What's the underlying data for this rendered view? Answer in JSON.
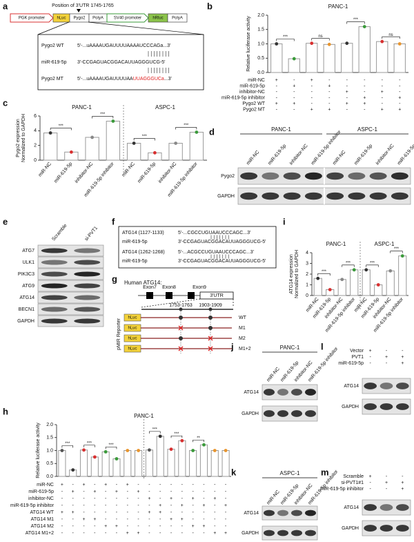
{
  "panel_letters": [
    "a",
    "b",
    "c",
    "d",
    "e",
    "f",
    "g",
    "h",
    "i",
    "j",
    "k",
    "l",
    "m"
  ],
  "construct": {
    "position_label": "Position of 3'UTR 1745-1765",
    "elements": [
      "PGK promoter",
      "hLuc",
      "Pygo2",
      "PolyA",
      "SV40 promoter",
      "hRluc",
      "PolyA"
    ],
    "alignment": [
      {
        "name": "Pygo2 WT",
        "sequence": "5'-...uAAAAUGAUUUUAAAAUCCCAGa...3'"
      },
      {
        "name": "miR-619-5p",
        "sequence": "3'-CCGAGUACGGACAUUAGGGUCG-5'"
      },
      {
        "name": "Pygo2 MT",
        "sequence": "5'-...uAAAAUGAUUUUAA",
        "mutation": "UUAGGGUCa",
        "sequence_end": "...3'"
      }
    ]
  },
  "chart_data": [
    {
      "type": "bar",
      "title": "PANC-1",
      "y_label": [
        "Relative luciferase activity"
      ],
      "ylim": [
        0,
        2
      ],
      "yticks": [
        {
          "value": 0,
          "label": "0.0"
        },
        0.5,
        {
          "value": 1,
          "label": "1.0"
        },
        1.5,
        {
          "value": 2,
          "label": "2.0"
        }
      ],
      "values": [
        1.0,
        0.48,
        1.02,
        0.98,
        1.02,
        1.6,
        1.08,
        1.0
      ],
      "colors": [
        "#333",
        "#3a9a3a",
        "#d83030",
        "#e8952e",
        "#333",
        "#3a9a3a",
        "#d83030",
        "#e8952e"
      ],
      "annotations": [
        "***",
        "ns",
        "***",
        "ns"
      ],
      "conditions": [
        {
          "name": "miR-NC",
          "signs": [
            "+",
            "-",
            "+",
            "-",
            "-",
            "-",
            "-",
            "-"
          ]
        },
        {
          "name": "miR-619-5p",
          "signs": [
            "-",
            "+",
            "-",
            "+",
            "-",
            "-",
            "-",
            "-"
          ]
        },
        {
          "name": "inhibitor-NC",
          "signs": [
            "-",
            "-",
            "-",
            "-",
            "+",
            "-",
            "+",
            "-"
          ]
        },
        {
          "name": "miR-619-5p inhibitor",
          "signs": [
            "-",
            "-",
            "-",
            "-",
            "-",
            "+",
            "-",
            "+"
          ]
        },
        {
          "name": "Pygo2 WT",
          "signs": [
            "+",
            "+",
            "-",
            "-",
            "+",
            "+",
            "-",
            "-"
          ]
        },
        {
          "name": "Pygo2 MT",
          "signs": [
            "-",
            "-",
            "+",
            "+",
            "-",
            "-",
            "+",
            "+"
          ]
        }
      ]
    },
    {
      "type": "bar",
      "group_titles": [
        "PANC-1",
        "ASPC-1"
      ],
      "y_label": [
        "Pygo2 expression",
        "Normalized to GAPDH"
      ],
      "ylim": [
        0,
        6
      ],
      "yticks": [
        0,
        2,
        4,
        6
      ],
      "categories": [
        "miR-NC",
        "miR-619-5p",
        "inhibitor-NC",
        "miR-619-5p inhibitor",
        "miR-NC",
        "miR-619-5p",
        "inhibitor-NC",
        "miR-619-5p inhibitor"
      ],
      "values": [
        3.7,
        1.1,
        3.1,
        5.3,
        2.3,
        1.0,
        2.3,
        3.8
      ],
      "colors": [
        "#333",
        "#d83030",
        "#888",
        "#3a9a3a",
        "#333",
        "#d83030",
        "#888",
        "#3a9a3a"
      ],
      "annotations": [
        "***",
        "***",
        "***",
        "***"
      ]
    },
    {
      "type": "bar",
      "group_titles": [
        "PANC-1",
        "ASPC-1"
      ],
      "y_label": [
        "ATG14 expression",
        "Normalized to GAPDH"
      ],
      "ylim": [
        0,
        4
      ],
      "yticks": [
        0,
        1,
        2,
        3,
        4
      ],
      "categories": [
        "miR-NC",
        "miR-619-5p",
        "inhibitor-NC",
        "miR-619-5p inhibitor",
        "miR-NC",
        "miR-619-5p",
        "inhibitor-NC",
        "miR-619-5p inhibitor"
      ],
      "values": [
        1.6,
        0.55,
        1.5,
        2.4,
        2.4,
        1.0,
        2.3,
        3.7
      ],
      "colors": [
        "#333",
        "#d83030",
        "#888",
        "#3a9a3a",
        "#333",
        "#d83030",
        "#888",
        "#3a9a3a"
      ],
      "annotations": [
        "***",
        "***",
        "***",
        "***"
      ]
    },
    {
      "type": "bar",
      "title": "PANC-1",
      "y_label": [
        "Relative luciferase activity"
      ],
      "ylim": [
        0,
        2
      ],
      "yticks": [
        {
          "value": 0,
          "label": "0.0"
        },
        0.5,
        {
          "value": 1,
          "label": "1.0"
        },
        1.5,
        {
          "value": 2,
          "label": "2.0"
        }
      ],
      "values": [
        1.0,
        0.25,
        1.02,
        0.75,
        0.95,
        0.68,
        1.0,
        1.0,
        1.02,
        1.55,
        1.05,
        1.38,
        1.0,
        1.22,
        1.0,
        1.0
      ],
      "colors": [
        "#555",
        "#333",
        "#d83030",
        "#d83030",
        "#3a9a3a",
        "#3a9a3a",
        "#e8952e",
        "#e8952e",
        "#555",
        "#333",
        "#d83030",
        "#d83030",
        "#3a9a3a",
        "#3a9a3a",
        "#e8952e",
        "#e8952e"
      ],
      "annotations": [
        "***",
        "***",
        "***",
        null,
        "***",
        "***",
        "**",
        null
      ],
      "conditions": [
        {
          "name": "miR-NC",
          "signs": [
            "+",
            "-",
            "+",
            "-",
            "+",
            "-",
            "+",
            "-",
            "-",
            "-",
            "-",
            "-",
            "-",
            "-",
            "-",
            "-"
          ]
        },
        {
          "name": "miR-619-5p",
          "signs": [
            "-",
            "+",
            "-",
            "+",
            "-",
            "+",
            "-",
            "+",
            "-",
            "-",
            "-",
            "-",
            "-",
            "-",
            "-",
            "-"
          ]
        },
        {
          "name": "inhibitor-NC",
          "signs": [
            "-",
            "-",
            "-",
            "-",
            "-",
            "-",
            "-",
            "-",
            "+",
            "-",
            "+",
            "-",
            "+",
            "-",
            "+",
            "-"
          ]
        },
        {
          "name": "miR-619-5p inhibitor",
          "signs": [
            "-",
            "-",
            "-",
            "-",
            "-",
            "-",
            "-",
            "-",
            "-",
            "+",
            "-",
            "+",
            "-",
            "+",
            "-",
            "+"
          ]
        },
        {
          "name": "ATG14 WT",
          "signs": [
            "+",
            "+",
            "-",
            "-",
            "-",
            "-",
            "-",
            "-",
            "+",
            "+",
            "-",
            "-",
            "-",
            "-",
            "-",
            "-"
          ]
        },
        {
          "name": "ATG14 M1",
          "signs": [
            "-",
            "-",
            "+",
            "+",
            "-",
            "-",
            "-",
            "-",
            "-",
            "-",
            "+",
            "+",
            "-",
            "-",
            "-",
            "-"
          ]
        },
        {
          "name": "ATG14 M2",
          "signs": [
            "-",
            "-",
            "-",
            "-",
            "+",
            "+",
            "-",
            "-",
            "-",
            "-",
            "-",
            "-",
            "+",
            "+",
            "-",
            "-"
          ]
        },
        {
          "name": "ATG14 M1+2",
          "signs": [
            "-",
            "-",
            "-",
            "-",
            "-",
            "-",
            "+",
            "+",
            "-",
            "-",
            "-",
            "-",
            "-",
            "-",
            "+",
            "+"
          ]
        }
      ]
    }
  ],
  "blots": [
    {
      "group_titles": [
        "PANC-1",
        "ASPC-1"
      ],
      "lanes": [
        "miR-NC",
        "miR-619-5p",
        "inhibitor-NC",
        "miR-619-5p inhibitor",
        "miR-NC",
        "miR-619-5p",
        "inhibitor-NC",
        "miR-619-5p inhibitor"
      ],
      "proteins": [
        "Pygo2",
        "GAPDH"
      ]
    },
    {
      "lanes": [
        "Scramble",
        "si-PVT1"
      ],
      "proteins": [
        "ATG7",
        "ULK1",
        "PIK3C3",
        "ATG9",
        "ATG14",
        "BECN1",
        "GAPDH"
      ]
    },
    {
      "title": "PANC-1",
      "lanes": [
        "miR-NC",
        "miR-619-5p",
        "inhibitor-NC",
        "miR-619-5p inhibitor"
      ],
      "proteins": [
        "ATG14",
        "GAPDH"
      ]
    },
    {
      "title": "ASPC-1",
      "lanes": [
        "miR-NC",
        "miR-619-5p",
        "inhibitor-NC",
        "miR-619-5p inhibitor"
      ],
      "proteins": [
        "ATG14",
        "GAPDH"
      ]
    },
    {
      "conditions": [
        {
          "name": "Vector",
          "signs": [
            "+",
            "-",
            "-"
          ]
        },
        {
          "name": "PVT1",
          "signs": [
            "-",
            "+",
            "+"
          ]
        },
        {
          "name": "miR-619-5p",
          "signs": [
            "-",
            "-",
            "+"
          ]
        }
      ],
      "proteins": [
        "ATG14",
        "GAPDH"
      ]
    },
    {
      "conditions": [
        {
          "name": "Scramble",
          "signs": [
            "+",
            "-",
            "-"
          ]
        },
        {
          "name": "si-PVT1#1",
          "signs": [
            "-",
            "+",
            "+"
          ]
        },
        {
          "name": "miR-619-5p inhibitor",
          "signs": [
            "-",
            "-",
            "+"
          ]
        }
      ],
      "proteins": [
        "ATG14",
        "GAPDH"
      ]
    }
  ],
  "atg14_sites": {
    "rows": [
      {
        "name": "ATG14 (1127-1133)",
        "sequence": "5'-...CGCCUGUAAUCCCAGC...3'"
      },
      {
        "name": "miR-619-5p",
        "sequence": "3'-CCGAGUACGGACAUUAGGGUCG-5'"
      },
      {
        "name": "ATG14 (1262-1268)",
        "sequence": "5'-...ACGCCUGUAAUCCCAGC...3'"
      },
      {
        "name": "miR-619-5p",
        "sequence": "3'-CCGAGUACGGACAUUAGGGUCG-5'"
      }
    ]
  },
  "reporter": {
    "title": "Human ATG14:",
    "exons": [
      "Exon7",
      "Exon8",
      "Exon9"
    ],
    "utr": "3'UTR",
    "sites": [
      "1753-1763",
      "1903-1909"
    ],
    "side_label": "pMIR Reporter",
    "box_label": "hLuc",
    "constructs": [
      "WT",
      "M1",
      "M2",
      "M1+2"
    ]
  }
}
